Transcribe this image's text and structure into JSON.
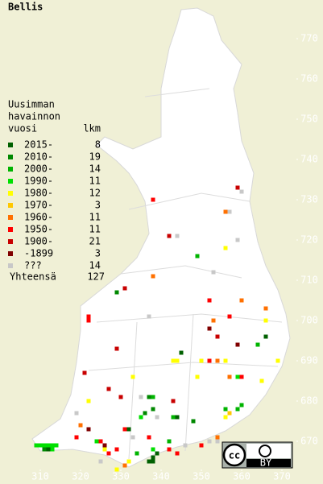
{
  "title": "Bellis",
  "legend": {
    "heading": [
      "Uusimman",
      "havainnon"
    ],
    "year_header": "vuosi",
    "count_header": "lkm",
    "items": [
      {
        "label": "2015-",
        "count": 8,
        "color": "#006000"
      },
      {
        "label": "2010-",
        "count": 19,
        "color": "#008800"
      },
      {
        "label": "2000-",
        "count": 14,
        "color": "#00b400"
      },
      {
        "label": "1990-",
        "count": 11,
        "color": "#00e000"
      },
      {
        "label": "1980-",
        "count": 12,
        "color": "#ffff00"
      },
      {
        "label": "1970-",
        "count": 3,
        "color": "#ffc800"
      },
      {
        "label": "1960-",
        "count": 11,
        "color": "#ff7000"
      },
      {
        "label": "1950-",
        "count": 11,
        "color": "#ff0000"
      },
      {
        "label": "1900-",
        "count": 21,
        "color": "#c80000"
      },
      {
        "label": "-1899",
        "count": 3,
        "color": "#800000"
      },
      {
        "label": "???",
        "count": 14,
        "color": "#c8c8c8"
      }
    ],
    "total_label": "Yhteensä",
    "total": 127
  },
  "map": {
    "xlim": [
      302,
      380
    ],
    "ylim": [
      660,
      779
    ],
    "xticks": [
      310,
      320,
      330,
      340,
      350,
      360,
      370
    ],
    "yticks": [
      670,
      680,
      690,
      700,
      710,
      720,
      730,
      740,
      750,
      760,
      770
    ],
    "points": [
      [
        359,
        733,
        8
      ],
      [
        360,
        732,
        10
      ],
      [
        338,
        730,
        7
      ],
      [
        356,
        727,
        6
      ],
      [
        357,
        727,
        10
      ],
      [
        342,
        721,
        8
      ],
      [
        344,
        721,
        10
      ],
      [
        359,
        720,
        10
      ],
      [
        356,
        718,
        4
      ],
      [
        349,
        716,
        2
      ],
      [
        338,
        711,
        6
      ],
      [
        353,
        712,
        10
      ],
      [
        331,
        708,
        8
      ],
      [
        329,
        707,
        1
      ],
      [
        352,
        705,
        7
      ],
      [
        360,
        705,
        6
      ],
      [
        366,
        703,
        6
      ],
      [
        322,
        701,
        7
      ],
      [
        322,
        700,
        7
      ],
      [
        337,
        701,
        10
      ],
      [
        353,
        700,
        6
      ],
      [
        357,
        701,
        7
      ],
      [
        366,
        700,
        4
      ],
      [
        352,
        698,
        9
      ],
      [
        366,
        696,
        0
      ],
      [
        329,
        693,
        8
      ],
      [
        345,
        692,
        0
      ],
      [
        354,
        696,
        8
      ],
      [
        359,
        694,
        9
      ],
      [
        364,
        694,
        2
      ],
      [
        343,
        690,
        4
      ],
      [
        344,
        690,
        4
      ],
      [
        350,
        690,
        4
      ],
      [
        352,
        690,
        7
      ],
      [
        354,
        690,
        6
      ],
      [
        356,
        690,
        4
      ],
      [
        369,
        690,
        4
      ],
      [
        321,
        687,
        8
      ],
      [
        333,
        686,
        4
      ],
      [
        360,
        686,
        7
      ],
      [
        359,
        686,
        3
      ],
      [
        357,
        686,
        6
      ],
      [
        365,
        685,
        4
      ],
      [
        349,
        686,
        4
      ],
      [
        327,
        683,
        8
      ],
      [
        330,
        681,
        8
      ],
      [
        335,
        681,
        10
      ],
      [
        337,
        681,
        1
      ],
      [
        338,
        681,
        2
      ],
      [
        343,
        680,
        8
      ],
      [
        338,
        678,
        1
      ],
      [
        336,
        677,
        1
      ],
      [
        360,
        679,
        2
      ],
      [
        359,
        678,
        2
      ],
      [
        322,
        680,
        4
      ],
      [
        319,
        677,
        10
      ],
      [
        356,
        678,
        2
      ],
      [
        335,
        676,
        3
      ],
      [
        339,
        676,
        10
      ],
      [
        343,
        676,
        2
      ],
      [
        344,
        676,
        0
      ],
      [
        348,
        675,
        1
      ],
      [
        320,
        674,
        6
      ],
      [
        319,
        671,
        7
      ],
      [
        322,
        673,
        9
      ],
      [
        331,
        673,
        7
      ],
      [
        332,
        673,
        0
      ],
      [
        356,
        676,
        4
      ],
      [
        357,
        677,
        5
      ],
      [
        354,
        671,
        6
      ],
      [
        354,
        670,
        10
      ],
      [
        333,
        671,
        10
      ],
      [
        337,
        671,
        7
      ],
      [
        324,
        670,
        3
      ],
      [
        325,
        670,
        7
      ],
      [
        326,
        669,
        9
      ],
      [
        342,
        670,
        2
      ],
      [
        309,
        669,
        3
      ],
      [
        310,
        669,
        3
      ],
      [
        311,
        669,
        3
      ],
      [
        312,
        669,
        3
      ],
      [
        313,
        669,
        3
      ],
      [
        314,
        669,
        3
      ],
      [
        311,
        668,
        1
      ],
      [
        312,
        668,
        0
      ],
      [
        313,
        668,
        3
      ],
      [
        338,
        668,
        3
      ],
      [
        339,
        667,
        0
      ],
      [
        338,
        666,
        0
      ],
      [
        337,
        665,
        0
      ],
      [
        338,
        665,
        0
      ],
      [
        334,
        667,
        2
      ],
      [
        342,
        668,
        7
      ],
      [
        346,
        669,
        10
      ],
      [
        350,
        669,
        7
      ],
      [
        352,
        670,
        10
      ],
      [
        329,
        668,
        7
      ],
      [
        326,
        668,
        4
      ],
      [
        327,
        667,
        7
      ],
      [
        332,
        665,
        4
      ],
      [
        329,
        663,
        4
      ],
      [
        331,
        664,
        6
      ],
      [
        325,
        665,
        10
      ],
      [
        344,
        667,
        7
      ]
    ]
  },
  "badge": {
    "cc": "cc",
    "by": "BY"
  }
}
